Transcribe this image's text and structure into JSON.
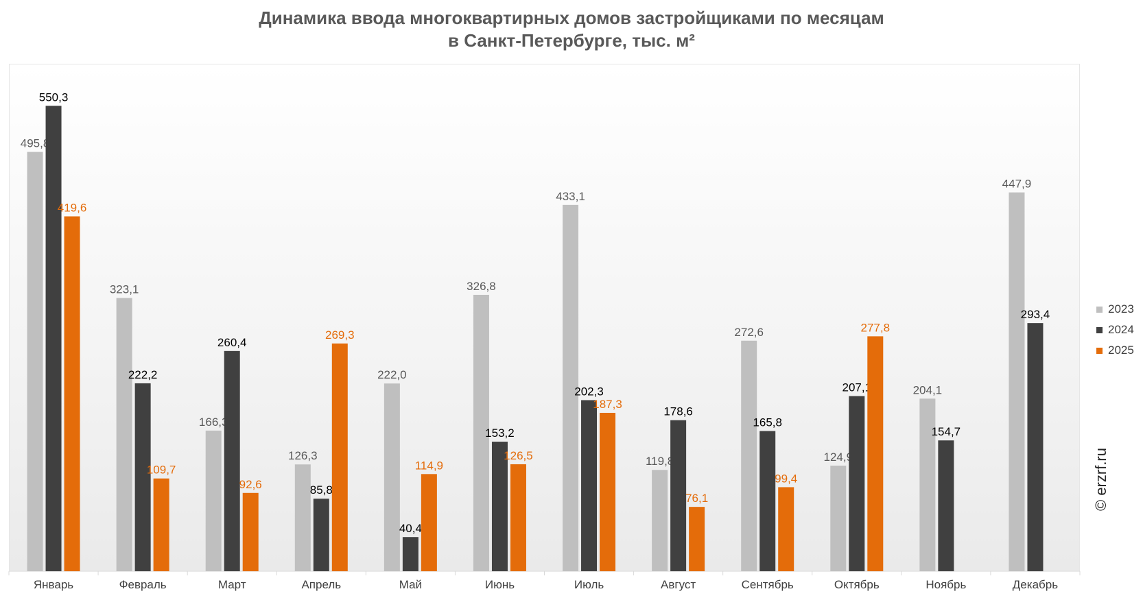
{
  "chart_data": {
    "type": "bar",
    "title": "Динамика ввода многоквартирных домов застройщиками по месяцам",
    "subtitle": "в Санкт-Петербурге, тыс. м²",
    "categories": [
      "Январь",
      "Февраль",
      "Март",
      "Апрель",
      "Май",
      "Июнь",
      "Июль",
      "Август",
      "Сентябрь",
      "Октябрь",
      "Ноябрь",
      "Декабрь"
    ],
    "series": [
      {
        "name": "2023",
        "color": "#bfbfbf",
        "label_color": "#595959",
        "values": [
          495.8,
          323.1,
          166.3,
          126.3,
          222.0,
          326.8,
          433.1,
          119.8,
          272.6,
          124.9,
          204.1,
          447.9
        ]
      },
      {
        "name": "2024",
        "color": "#404040",
        "label_color": "#000000",
        "values": [
          550.3,
          222.2,
          260.4,
          85.8,
          40.4,
          153.2,
          202.3,
          178.6,
          165.8,
          207.1,
          154.7,
          293.4
        ]
      },
      {
        "name": "2025",
        "color": "#e46c0a",
        "label_color": "#e46c0a",
        "values": [
          419.6,
          109.7,
          92.6,
          269.3,
          114.9,
          126.5,
          187.3,
          76.1,
          99.4,
          277.8,
          null,
          null
        ]
      }
    ],
    "ylim": [
      0,
      600
    ],
    "grid": false,
    "legend_position": "right",
    "watermark": "© erzrf.ru"
  }
}
